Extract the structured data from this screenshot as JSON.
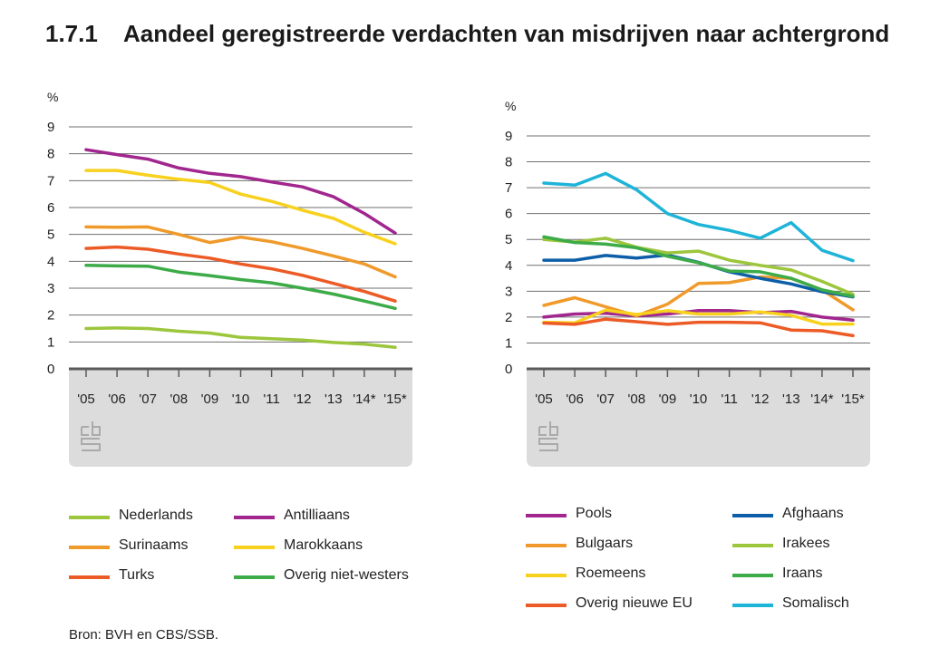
{
  "figure": {
    "number": "1.7.1",
    "title": "Aandeel geregistreerde verdachten van misdrijven naar achtergrond",
    "source": "Bron: BVH en CBS/SSB."
  },
  "chart_data": [
    {
      "type": "line",
      "ylabel": "%",
      "ylim": [
        0,
        9
      ],
      "yticks": [
        "0",
        "1",
        "2",
        "3",
        "4",
        "5",
        "6",
        "7",
        "8",
        "9"
      ],
      "categories": [
        "'05",
        "'06",
        "'07",
        "'08",
        "'09",
        "'10",
        "'11",
        "'12",
        "'13",
        "'14*",
        "'15*"
      ],
      "grid": true,
      "series": [
        {
          "name": "Nederlands",
          "color": "#9cc63c",
          "values": [
            1.5,
            1.52,
            1.5,
            1.4,
            1.33,
            1.17,
            1.12,
            1.07,
            0.98,
            0.92,
            0.8
          ]
        },
        {
          "name": "Surinaams",
          "color": "#ef9a2b",
          "values": [
            5.28,
            5.27,
            5.28,
            5.0,
            4.7,
            4.9,
            4.73,
            4.48,
            4.2,
            3.9,
            3.42
          ]
        },
        {
          "name": "Turks",
          "color": "#ec5b26",
          "values": [
            4.48,
            4.53,
            4.45,
            4.27,
            4.12,
            3.9,
            3.72,
            3.48,
            3.18,
            2.88,
            2.52
          ]
        },
        {
          "name": "Antilliaans",
          "color": "#a1268e",
          "values": [
            8.15,
            7.97,
            7.8,
            7.47,
            7.27,
            7.15,
            6.95,
            6.77,
            6.4,
            5.78,
            5.05
          ]
        },
        {
          "name": "Marokkaans",
          "color": "#f8d11e",
          "values": [
            7.38,
            7.38,
            7.2,
            7.05,
            6.93,
            6.5,
            6.23,
            5.9,
            5.6,
            5.08,
            4.65
          ]
        },
        {
          "name": "Overig niet-westers",
          "color": "#3cab48",
          "values": [
            3.85,
            3.83,
            3.82,
            3.6,
            3.47,
            3.32,
            3.2,
            3.0,
            2.78,
            2.52,
            2.25
          ]
        }
      ]
    },
    {
      "type": "line",
      "ylabel": "%",
      "ylim": [
        0,
        9
      ],
      "yticks": [
        "0",
        "1",
        "2",
        "3",
        "4",
        "5",
        "6",
        "7",
        "8",
        "9"
      ],
      "categories": [
        "'05",
        "'06",
        "'07",
        "'08",
        "'09",
        "'10",
        "'11",
        "'12",
        "'13",
        "'14*",
        "'15*"
      ],
      "grid": true,
      "series": [
        {
          "name": "Pools",
          "color": "#a1268e",
          "values": [
            2.0,
            2.12,
            2.15,
            2.05,
            2.12,
            2.25,
            2.25,
            2.17,
            2.22,
            2.0,
            1.88
          ]
        },
        {
          "name": "Bulgaars",
          "color": "#ef9a2b",
          "values": [
            2.45,
            2.75,
            2.4,
            2.05,
            2.5,
            3.3,
            3.33,
            3.55,
            3.5,
            3.05,
            2.28
          ]
        },
        {
          "name": "Roemeens",
          "color": "#f8d11e",
          "values": [
            1.8,
            1.78,
            2.27,
            2.1,
            2.25,
            2.12,
            2.12,
            2.2,
            2.07,
            1.73,
            1.73
          ]
        },
        {
          "name": "Overig nieuwe EU",
          "color": "#ec5b26",
          "values": [
            1.77,
            1.72,
            1.92,
            1.82,
            1.72,
            1.8,
            1.8,
            1.78,
            1.5,
            1.47,
            1.28
          ]
        },
        {
          "name": "Afghaans",
          "color": "#0d5ea8",
          "values": [
            4.2,
            4.2,
            4.38,
            4.28,
            4.4,
            4.12,
            3.75,
            3.5,
            3.28,
            2.98,
            2.78
          ]
        },
        {
          "name": "Irakees",
          "color": "#9cc63c",
          "values": [
            5.0,
            4.9,
            5.05,
            4.7,
            4.48,
            4.55,
            4.2,
            4.0,
            3.82,
            3.38,
            2.88
          ]
        },
        {
          "name": "Iraans",
          "color": "#3cab48",
          "values": [
            5.1,
            4.88,
            4.82,
            4.68,
            4.35,
            4.1,
            3.78,
            3.75,
            3.5,
            3.05,
            2.8
          ]
        },
        {
          "name": "Somalisch",
          "color": "#1eb4d8",
          "values": [
            7.18,
            7.1,
            7.55,
            6.92,
            6.0,
            5.58,
            5.35,
            5.05,
            5.65,
            4.58,
            4.18
          ]
        }
      ]
    }
  ]
}
